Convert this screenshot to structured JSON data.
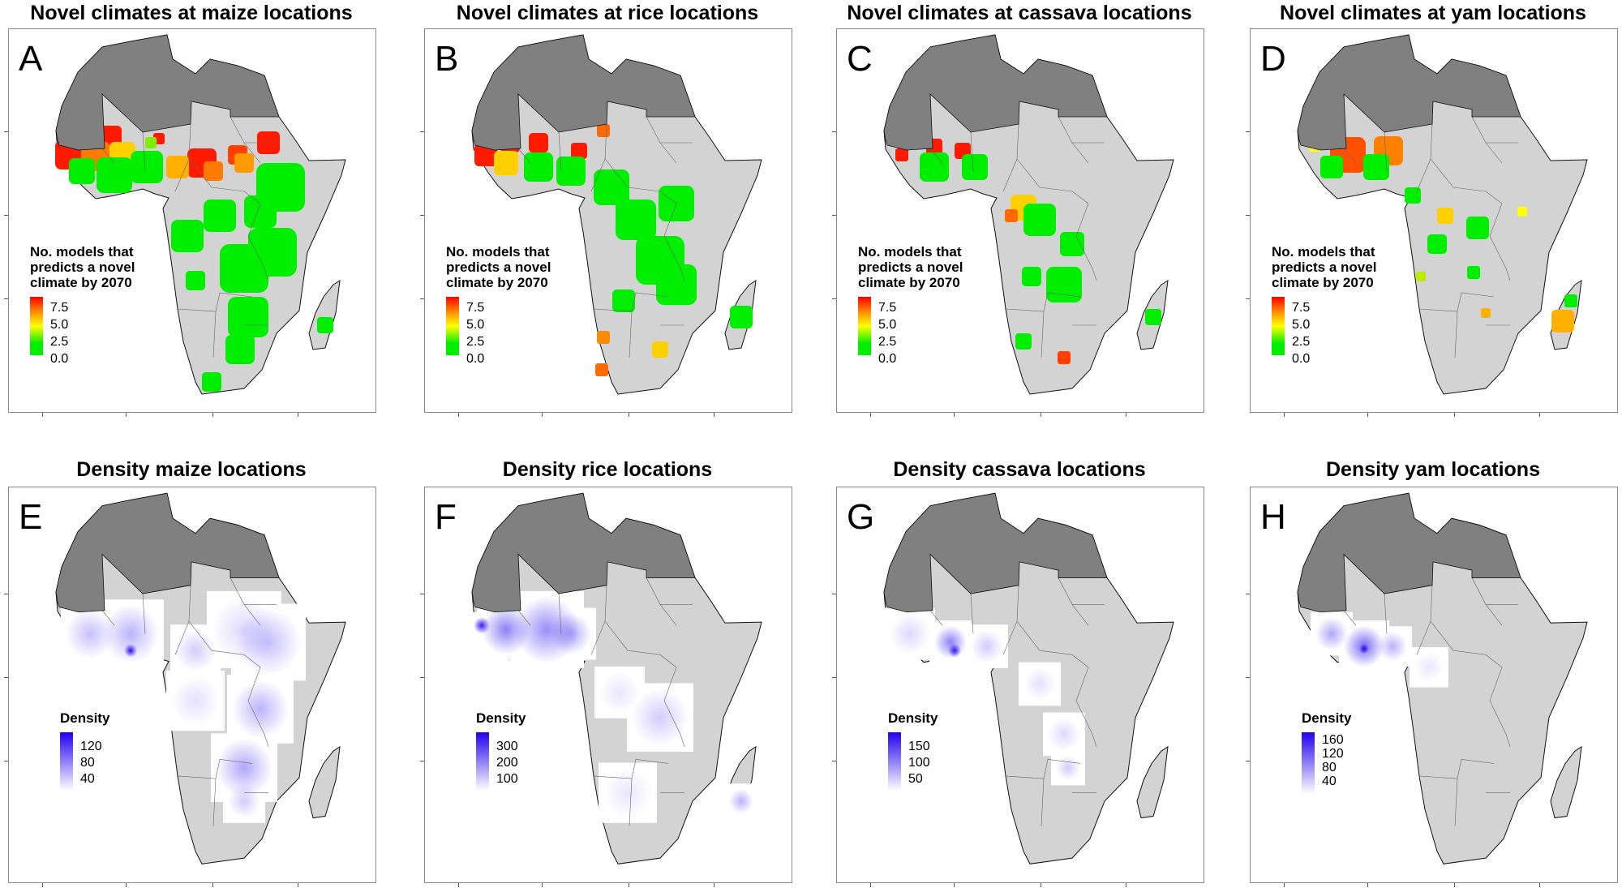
{
  "colors": {
    "north_africa": "#808080",
    "land": "#d3d3d3",
    "novel_low": "#00ee00",
    "novel_mid": "#ffff00",
    "novel_high": "#ff0000",
    "density_high": "#2200ee",
    "density_low": "#ffffff"
  },
  "panels": [
    {
      "letter": "A",
      "title": "Novel climates at maize locations",
      "type": "novel",
      "legend_title": "No. models that\npredicts a novel\nclimate by 2070",
      "legend_labels": [
        "7.5",
        "5.0",
        "2.5",
        "0.0"
      ]
    },
    {
      "letter": "B",
      "title": "Novel climates at rice locations",
      "type": "novel",
      "legend_title": "No. models that\npredicts a novel\nclimate by 2070",
      "legend_labels": [
        "7.5",
        "5.0",
        "2.5",
        "0.0"
      ]
    },
    {
      "letter": "C",
      "title": "Novel climates at cassava locations",
      "type": "novel",
      "legend_title": "No. models that\npredicts a novel\nclimate by 2070",
      "legend_labels": [
        "7.5",
        "5.0",
        "2.5",
        "0.0"
      ]
    },
    {
      "letter": "D",
      "title": "Novel climates at yam locations",
      "type": "novel",
      "legend_title": "No. models that\npredicts a novel\nclimate by 2070",
      "legend_labels": [
        "7.5",
        "5.0",
        "2.5",
        "0.0"
      ]
    },
    {
      "letter": "E",
      "title": "Density maize locations",
      "type": "density",
      "legend_title": "Density",
      "legend_labels": [
        "120",
        "80",
        "40"
      ]
    },
    {
      "letter": "F",
      "title": "Density rice locations",
      "type": "density",
      "legend_title": "Density",
      "legend_labels": [
        "300",
        "200",
        "100"
      ]
    },
    {
      "letter": "G",
      "title": "Density cassava locations",
      "type": "density",
      "legend_title": "Density",
      "legend_labels": [
        "150",
        "100",
        "50"
      ]
    },
    {
      "letter": "H",
      "title": "Density yam locations",
      "type": "density",
      "legend_title": "Density",
      "legend_labels": [
        "160",
        "120",
        "80",
        "40"
      ]
    }
  ]
}
